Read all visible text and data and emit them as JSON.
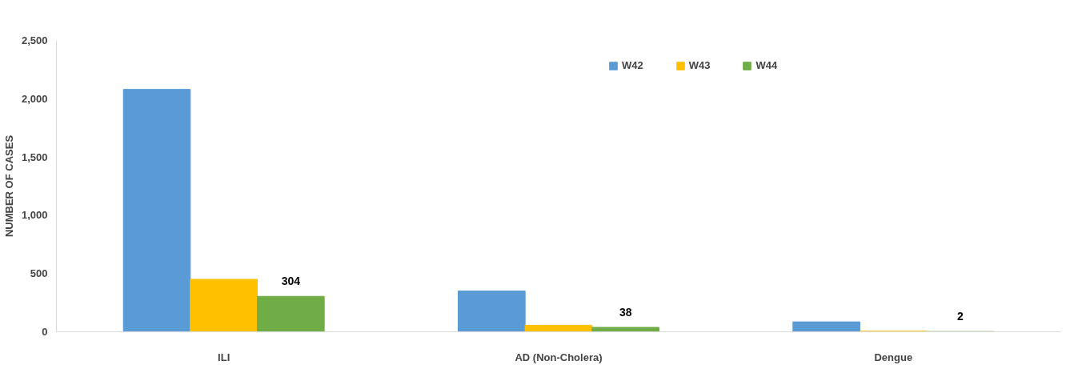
{
  "chart_data": {
    "type": "bar",
    "ylabel": "NUMBER OF CASES",
    "categories": [
      "ILI",
      "AD (Non-Cholera)",
      "Dengue"
    ],
    "ylim": [
      0,
      2500
    ],
    "yticks": [
      {
        "value": 0,
        "label": "0"
      },
      {
        "value": 500,
        "label": "500"
      },
      {
        "value": 1000,
        "label": "1,000"
      },
      {
        "value": 1500,
        "label": "1,500"
      },
      {
        "value": 2000,
        "label": "2,000"
      },
      {
        "value": 2500,
        "label": "2,500"
      }
    ],
    "grid": false,
    "legend": "top right",
    "series": [
      {
        "name": "W42",
        "color": "#5b9bd5",
        "values": [
          2080,
          350,
          85
        ]
      },
      {
        "name": "W43",
        "color": "#ffc000",
        "values": [
          450,
          56,
          5
        ]
      },
      {
        "name": "W44",
        "color": "#70ad47",
        "values": [
          304,
          38,
          2
        ],
        "value_labels": [
          "304",
          "38",
          "2"
        ]
      }
    ]
  }
}
